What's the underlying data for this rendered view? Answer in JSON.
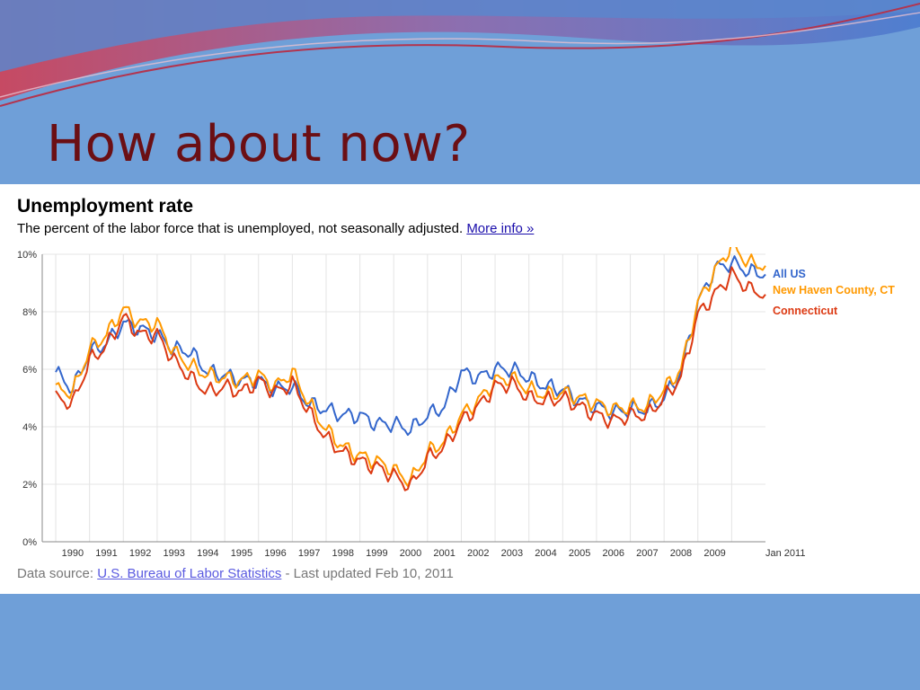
{
  "slide": {
    "title": "How about now?"
  },
  "chart_header": {
    "title": "Unemployment rate",
    "subtitle": "The percent of the labor force that is unemployed, not seasonally adjusted.",
    "more_info": "More info »"
  },
  "footer": {
    "prefix": "Data source: ",
    "source_link": "U.S. Bureau of Labor Statistics",
    "suffix": " - Last updated Feb 10, 2011"
  },
  "colors": {
    "slide_bg": "#6f9fd8",
    "title": "#6b0f14",
    "all_us": "#3366cc",
    "new_haven": "#ff9900",
    "connecticut": "#dc3912"
  },
  "chart_data": {
    "type": "line",
    "title": "Unemployment rate",
    "x_unit": "year",
    "xlim": [
      1989.6,
      2011.0
    ],
    "ylim": [
      0,
      10
    ],
    "y_ticks": [
      0,
      2,
      4,
      6,
      8,
      10
    ],
    "y_tick_labels": [
      "0%",
      "2%",
      "4%",
      "6%",
      "8%",
      "10%"
    ],
    "x_tick_labels": [
      "1990",
      "1991",
      "1992",
      "1993",
      "1994",
      "1995",
      "1996",
      "1997",
      "1998",
      "1999",
      "2000",
      "2001",
      "2002",
      "2003",
      "2004",
      "2005",
      "2006",
      "2007",
      "2008",
      "2009",
      "Jan 2011"
    ],
    "grid": true,
    "legend_position": "right",
    "series": [
      {
        "name": "All US",
        "color": "#3366cc",
        "x": [
          1990.0,
          1990.5,
          1991.0,
          1991.5,
          1992.0,
          1992.5,
          1993.0,
          1993.5,
          1994.0,
          1994.5,
          1995.0,
          1995.5,
          1996.0,
          1996.5,
          1997.0,
          1997.5,
          1998.0,
          1998.5,
          1999.0,
          1999.5,
          2000.0,
          2000.5,
          2001.0,
          2001.5,
          2002.0,
          2002.5,
          2003.0,
          2003.5,
          2004.0,
          2004.5,
          2005.0,
          2005.5,
          2006.0,
          2006.5,
          2007.0,
          2007.5,
          2008.0,
          2008.5,
          2009.0,
          2009.5,
          2010.0,
          2010.5,
          2011.0
        ],
        "values": [
          5.9,
          5.3,
          6.6,
          6.9,
          7.6,
          7.4,
          7.2,
          6.7,
          6.6,
          5.9,
          5.8,
          5.6,
          5.6,
          5.3,
          5.4,
          4.8,
          4.6,
          4.4,
          4.4,
          4.1,
          4.1,
          3.9,
          4.4,
          4.7,
          5.9,
          5.7,
          6.0,
          6.0,
          5.7,
          5.4,
          5.3,
          4.9,
          4.7,
          4.5,
          4.6,
          4.6,
          5.0,
          5.9,
          8.3,
          9.5,
          9.7,
          9.4,
          9.3
        ]
      },
      {
        "name": "New Haven County, CT",
        "color": "#ff9900",
        "x": [
          1990.0,
          1990.5,
          1991.0,
          1991.5,
          1992.0,
          1992.5,
          1993.0,
          1993.5,
          1994.0,
          1994.5,
          1995.0,
          1995.5,
          1996.0,
          1996.5,
          1997.0,
          1997.5,
          1998.0,
          1998.5,
          1999.0,
          1999.5,
          2000.0,
          2000.5,
          2001.0,
          2001.5,
          2002.0,
          2002.5,
          2003.0,
          2003.5,
          2004.0,
          2004.5,
          2005.0,
          2005.5,
          2006.0,
          2006.5,
          2007.0,
          2007.5,
          2008.0,
          2008.5,
          2009.0,
          2009.5,
          2010.0,
          2010.5,
          2011.0
        ],
        "values": [
          5.3,
          5.2,
          6.7,
          7.2,
          8.1,
          7.6,
          7.6,
          6.6,
          6.1,
          5.8,
          5.7,
          5.6,
          5.8,
          5.4,
          5.9,
          4.8,
          3.9,
          3.3,
          3.0,
          2.8,
          2.5,
          2.1,
          3.1,
          3.5,
          4.4,
          4.9,
          5.6,
          5.7,
          5.3,
          5.1,
          5.2,
          5.0,
          4.8,
          4.6,
          4.7,
          4.7,
          5.3,
          6.0,
          8.3,
          9.4,
          10.3,
          9.7,
          9.6
        ]
      },
      {
        "name": "Connecticut",
        "color": "#dc3912",
        "x": [
          1990.0,
          1990.5,
          1991.0,
          1991.5,
          1992.0,
          1992.5,
          1993.0,
          1993.5,
          1994.0,
          1994.5,
          1995.0,
          1995.5,
          1996.0,
          1996.5,
          1997.0,
          1997.5,
          1998.0,
          1998.5,
          1999.0,
          1999.5,
          2000.0,
          2000.5,
          2001.0,
          2001.5,
          2002.0,
          2002.5,
          2003.0,
          2003.5,
          2004.0,
          2004.5,
          2005.0,
          2005.5,
          2006.0,
          2006.5,
          2007.0,
          2007.5,
          2008.0,
          2008.5,
          2009.0,
          2009.5,
          2010.0,
          2010.5,
          2011.0
        ],
        "values": [
          5.0,
          4.8,
          6.3,
          6.8,
          7.8,
          7.2,
          7.2,
          6.3,
          5.7,
          5.2,
          5.4,
          5.2,
          5.6,
          5.2,
          5.5,
          4.5,
          3.6,
          3.1,
          2.8,
          2.6,
          2.3,
          1.9,
          2.9,
          3.3,
          4.2,
          4.7,
          5.4,
          5.5,
          5.0,
          4.9,
          5.0,
          4.7,
          4.4,
          4.2,
          4.4,
          4.4,
          5.0,
          5.7,
          7.9,
          8.6,
          9.3,
          8.8,
          8.6
        ]
      }
    ]
  }
}
